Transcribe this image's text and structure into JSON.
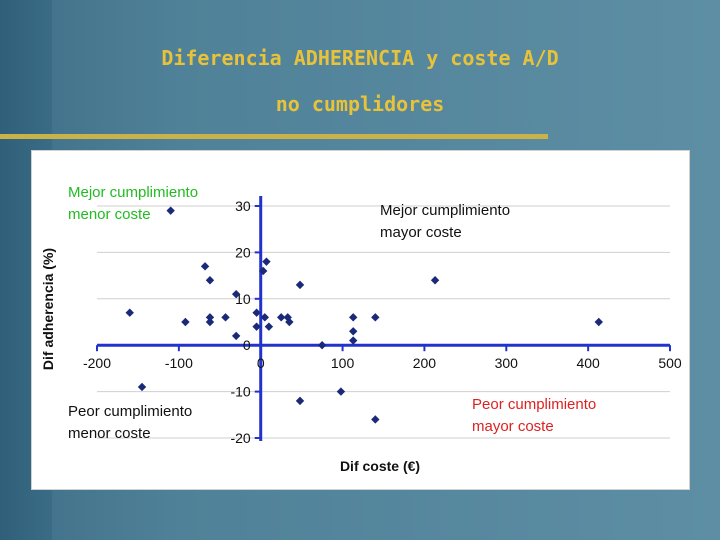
{
  "slide": {
    "title_line1": "Diferencia ADHERENCIA y coste A/D",
    "title_line2": "no cumplidores",
    "title_color": "#e8c23a",
    "rule_color": "#c9b24a"
  },
  "chart_data": {
    "type": "scatter",
    "title": "",
    "xlabel": "Dif coste (€)",
    "ylabel": "Dif adherencia (%)",
    "xlim": [
      -200,
      500
    ],
    "ylim": [
      -20,
      30
    ],
    "xticks": [
      -200,
      -100,
      0,
      100,
      200,
      300,
      400,
      500
    ],
    "yticks": [
      -20,
      -10,
      0,
      10,
      20,
      30
    ],
    "xtick_labels": [
      "-200",
      "-100",
      "0",
      "100",
      "200",
      "300",
      "400",
      "500"
    ],
    "ytick_labels": [
      "-20",
      "-10",
      "0",
      "10",
      "20",
      "30"
    ],
    "grid": "horizontal",
    "marker": "diamond",
    "marker_color": "#1a2a78",
    "axis_color": "#2233cc",
    "points": [
      {
        "x": -160,
        "y": 7
      },
      {
        "x": -145,
        "y": -9
      },
      {
        "x": -110,
        "y": 29
      },
      {
        "x": -92,
        "y": 5
      },
      {
        "x": -68,
        "y": 17
      },
      {
        "x": -62,
        "y": 14
      },
      {
        "x": -62,
        "y": 6
      },
      {
        "x": -62,
        "y": 5
      },
      {
        "x": -43,
        "y": 6
      },
      {
        "x": -30,
        "y": 11
      },
      {
        "x": -30,
        "y": 2
      },
      {
        "x": -5,
        "y": 7
      },
      {
        "x": -5,
        "y": 4
      },
      {
        "x": 3,
        "y": 16
      },
      {
        "x": 5,
        "y": 6
      },
      {
        "x": 7,
        "y": 18
      },
      {
        "x": 10,
        "y": 4
      },
      {
        "x": 25,
        "y": 6
      },
      {
        "x": 33,
        "y": 6
      },
      {
        "x": 35,
        "y": 5
      },
      {
        "x": 48,
        "y": 13
      },
      {
        "x": 48,
        "y": -12
      },
      {
        "x": 75,
        "y": 0
      },
      {
        "x": 98,
        "y": -10
      },
      {
        "x": 113,
        "y": 6
      },
      {
        "x": 113,
        "y": 3
      },
      {
        "x": 113,
        "y": 1
      },
      {
        "x": 140,
        "y": 6
      },
      {
        "x": 140,
        "y": -16
      },
      {
        "x": 213,
        "y": 14
      },
      {
        "x": 413,
        "y": 5
      }
    ],
    "annotations": [
      {
        "id": "q-top-left",
        "lines": [
          "Mejor cumplimiento",
          "menor coste"
        ],
        "color": "#22bb22"
      },
      {
        "id": "q-top-right",
        "lines": [
          "Mejor cumplimiento",
          "mayor coste"
        ],
        "color": "#111111"
      },
      {
        "id": "q-bottom-left",
        "lines": [
          "Peor cumplimiento",
          "menor coste"
        ],
        "color": "#111111"
      },
      {
        "id": "q-bottom-right",
        "lines": [
          "Peor cumplimiento",
          "mayor coste"
        ],
        "color": "#dd2222"
      }
    ]
  }
}
